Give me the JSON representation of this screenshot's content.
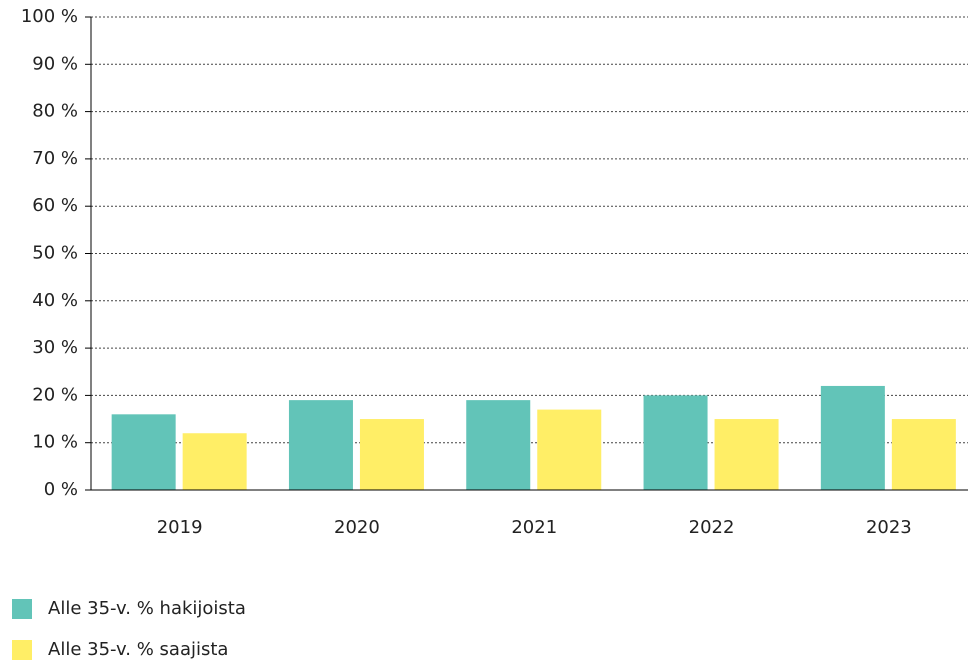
{
  "chart_data": {
    "type": "bar",
    "categories": [
      "2019",
      "2020",
      "2021",
      "2022",
      "2023"
    ],
    "series": [
      {
        "name": "Alle 35-v. % hakijoista",
        "color": "#62c4b8",
        "values": [
          16,
          19,
          19,
          20,
          22
        ]
      },
      {
        "name": "Alle 35-v. % saajista",
        "color": "#ffee66",
        "values": [
          12,
          15,
          17,
          15,
          15
        ]
      }
    ],
    "ylim": [
      0,
      100
    ],
    "yticks": [
      {
        "value": 0,
        "label": "0 %"
      },
      {
        "value": 10,
        "label": "10 %"
      },
      {
        "value": 20,
        "label": "20 %"
      },
      {
        "value": 30,
        "label": "30 %"
      },
      {
        "value": 40,
        "label": "40 %"
      },
      {
        "value": 50,
        "label": "50 %"
      },
      {
        "value": 60,
        "label": "60 %"
      },
      {
        "value": 70,
        "label": "70 %"
      },
      {
        "value": 80,
        "label": "80 %"
      },
      {
        "value": 90,
        "label": "90 %"
      },
      {
        "value": 100,
        "label": "100 %"
      }
    ],
    "grid": true
  }
}
